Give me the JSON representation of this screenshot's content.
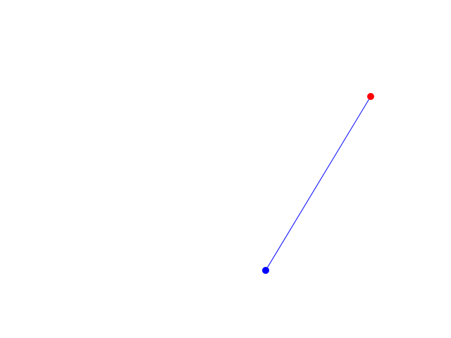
{
  "canvas": {
    "background": "#ffffff",
    "start_point": {
      "color": "#0000ff"
    },
    "end_point": {
      "color": "#ff0000"
    },
    "connector": {
      "color": "#0000ff"
    }
  }
}
